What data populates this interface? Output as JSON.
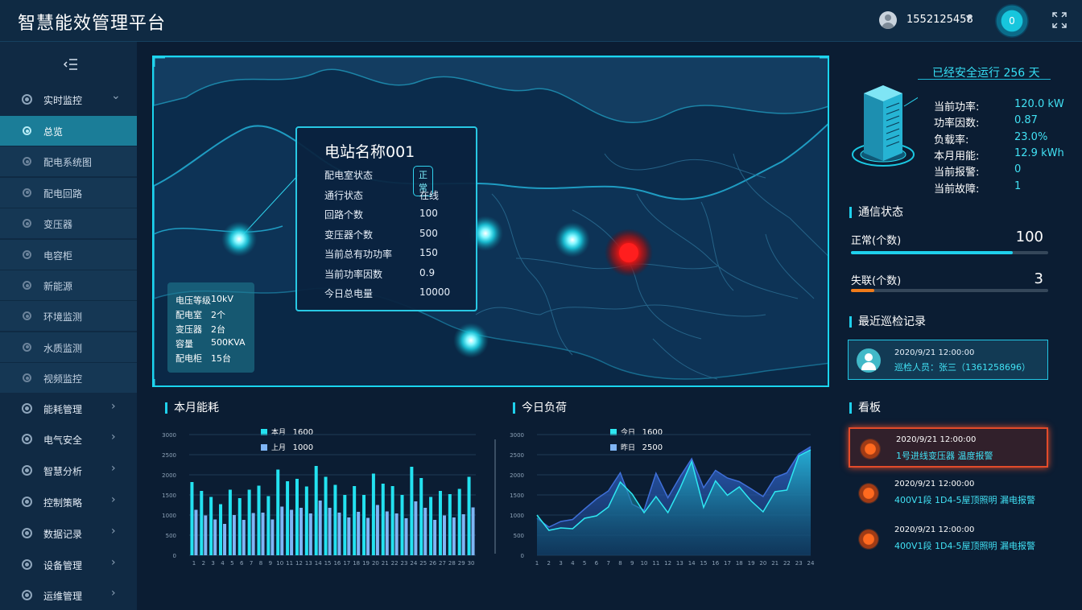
{
  "app": {
    "title": "智慧能效管理平台"
  },
  "header": {
    "username": "1552125458",
    "notifications": "0"
  },
  "sidebar": {
    "items": [
      {
        "label": "实时监控",
        "expanded": true,
        "children": [
          {
            "label": "总览",
            "active": true
          },
          {
            "label": "配电系统图"
          },
          {
            "label": "配电回路"
          },
          {
            "label": "变压器"
          },
          {
            "label": "电容柜"
          },
          {
            "label": "新能源"
          },
          {
            "label": "环境监测"
          },
          {
            "label": "水质监测"
          },
          {
            "label": "视频监控"
          }
        ]
      },
      {
        "label": "能耗管理"
      },
      {
        "label": "电气安全"
      },
      {
        "label": "智慧分析"
      },
      {
        "label": "控制策略"
      },
      {
        "label": "数据记录"
      },
      {
        "label": "设备管理"
      },
      {
        "label": "运维管理"
      }
    ]
  },
  "map": {
    "popup": {
      "title": "电站名称001",
      "rows": [
        {
          "label": "配电室状态",
          "value": "正常"
        },
        {
          "label": "通行状态",
          "value": "在线"
        },
        {
          "label": "回路个数",
          "value": "100"
        },
        {
          "label": "变压器个数",
          "value": "500"
        },
        {
          "label": "当前总有功功率",
          "value": "150"
        },
        {
          "label": "当前功率因数",
          "value": "0.9"
        },
        {
          "label": "今日总电量",
          "value": "10000"
        }
      ]
    },
    "info": [
      {
        "label": "电压等级",
        "value": "10kV"
      },
      {
        "label": "配电室",
        "value": "2个"
      },
      {
        "label": "变压器",
        "value": "2台"
      },
      {
        "label": "容量",
        "value": "500KVA"
      },
      {
        "label": "配电柜",
        "value": "15台"
      }
    ]
  },
  "energy": {
    "title": "本月能耗",
    "legend": [
      {
        "name": "本月",
        "value": "1600"
      },
      {
        "name": "上月",
        "value": "1000"
      }
    ]
  },
  "load": {
    "title": "今日负荷",
    "legend": [
      {
        "name": "今日",
        "value": "1600"
      },
      {
        "name": "昨日",
        "value": "2500"
      }
    ]
  },
  "chart_data": [
    {
      "type": "bar",
      "categories": [
        "1",
        "2",
        "3",
        "4",
        "5",
        "6",
        "7",
        "8",
        "9",
        "10",
        "11",
        "12",
        "13",
        "14",
        "15",
        "16",
        "17",
        "18",
        "19",
        "20",
        "21",
        "22",
        "23",
        "24",
        "25",
        "26",
        "27",
        "28",
        "29",
        "30"
      ],
      "series": [
        {
          "name": "本月",
          "color": "#23e2f0",
          "values": [
            1820,
            1600,
            1450,
            1270,
            1630,
            1420,
            1630,
            1730,
            1470,
            2130,
            1840,
            1900,
            1710,
            2220,
            1950,
            1750,
            1500,
            1720,
            1500,
            2030,
            1780,
            1720,
            1500,
            2200,
            1920,
            1450,
            1600,
            1520,
            1650,
            1950
          ]
        },
        {
          "name": "上月",
          "color": "#7fb5f5",
          "values": [
            1130,
            990,
            890,
            780,
            1000,
            880,
            1050,
            1060,
            890,
            1210,
            1130,
            1180,
            1040,
            1360,
            1180,
            1060,
            940,
            1080,
            930,
            1250,
            1090,
            1040,
            920,
            1340,
            1180,
            880,
            990,
            940,
            1020,
            1190
          ]
        }
      ],
      "ylim": [
        0,
        3000
      ],
      "yticks": [
        0,
        500,
        1000,
        1500,
        2000,
        2500,
        3000
      ]
    },
    {
      "type": "area",
      "x": [
        "1",
        "2",
        "3",
        "4",
        "5",
        "6",
        "7",
        "8",
        "9",
        "10",
        "11",
        "12",
        "13",
        "14",
        "15",
        "16",
        "17",
        "18",
        "19",
        "20",
        "21",
        "22",
        "23",
        "24"
      ],
      "series": [
        {
          "name": "今日",
          "color": "#2ee8f2",
          "values": [
            1000,
            620,
            680,
            660,
            920,
            980,
            1200,
            1820,
            1520,
            1060,
            1460,
            1060,
            1650,
            2330,
            1190,
            1850,
            1490,
            1700,
            1350,
            1080,
            1580,
            1620,
            2470,
            2620
          ]
        },
        {
          "name": "昨日",
          "color": "#3f6fd8",
          "values": [
            920,
            700,
            840,
            890,
            1150,
            1400,
            1600,
            2050,
            1270,
            1120,
            2040,
            1430,
            1940,
            2400,
            1680,
            2110,
            1920,
            1830,
            1650,
            1460,
            1930,
            2050,
            2520,
            2700
          ]
        }
      ],
      "ylim": [
        0,
        3000
      ],
      "yticks": [
        0,
        500,
        1000,
        1500,
        2000,
        2500,
        3000
      ]
    }
  ],
  "right": {
    "safe_run": "已经安全运行 256 天",
    "metrics": [
      {
        "label": "当前功率:",
        "value": "120.0 kW"
      },
      {
        "label": "功率因数:",
        "value": "0.87"
      },
      {
        "label": "负载率:",
        "value": "23.0%"
      },
      {
        "label": "本月用能:",
        "value": "12.9 kWh"
      },
      {
        "label": "当前报警:",
        "value": "0"
      },
      {
        "label": "当前故障:",
        "value": "1"
      }
    ],
    "comm": {
      "title": "通信状态",
      "normal_label": "正常(个数)",
      "normal_value": "100",
      "normal_ratio": 0.82,
      "lost_label": "失联(个数)",
      "lost_value": "3",
      "lost_ratio": 0.12
    },
    "inspection": {
      "title": "最近巡检记录",
      "time": "2020/9/21 12:00:00",
      "person": "巡检人员：张三（1361258696）"
    },
    "board": {
      "title": "看板",
      "alarms": [
        {
          "time": "2020/9/21 12:00:00",
          "text": "1号进线变压器 温度报警"
        },
        {
          "time": "2020/9/21 12:00:00",
          "text": "400V1段 1D4-5屋顶照明 漏电报警"
        },
        {
          "time": "2020/9/21 12:00:00",
          "text": "400V1段 1D4-5屋顶照明 漏电报警"
        }
      ]
    }
  }
}
